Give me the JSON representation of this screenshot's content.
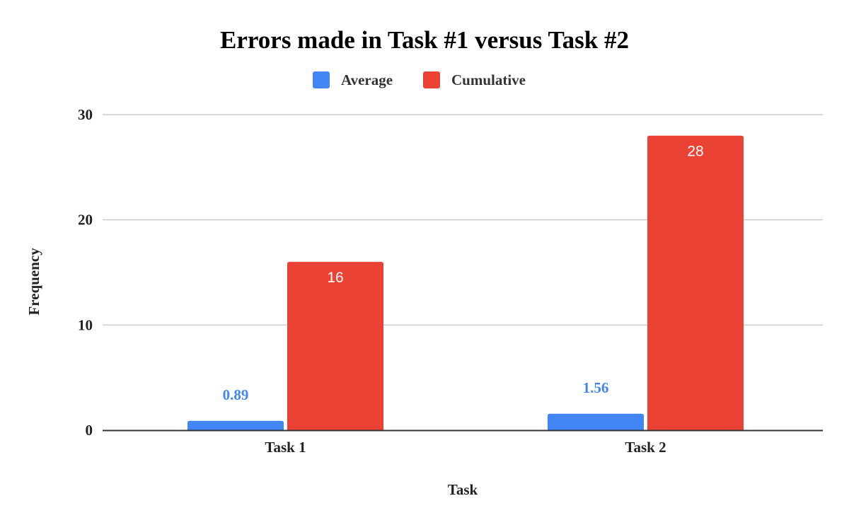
{
  "chart_data": {
    "type": "bar",
    "title": "Errors made in Task #1 versus Task #2",
    "xlabel": "Task",
    "ylabel": "Frequency",
    "categories": [
      "Task 1",
      "Task 2"
    ],
    "series": [
      {
        "name": "Average",
        "values": [
          0.89,
          1.56
        ],
        "labels": [
          "0.89",
          "1.56"
        ],
        "color": "#4285f4",
        "label_position": "above",
        "label_color": "#4285f4"
      },
      {
        "name": "Cumulative",
        "values": [
          16,
          28
        ],
        "labels": [
          "16",
          "28"
        ],
        "color": "#ea4335",
        "label_position": "inside-top",
        "label_color": "#ffffff"
      }
    ],
    "ylim": [
      0,
      30
    ],
    "yticks": [
      "0",
      "10",
      "20",
      "30"
    ],
    "ytick_values": [
      0,
      10,
      20,
      30
    ],
    "grid": true,
    "legend_position": "top-center"
  }
}
